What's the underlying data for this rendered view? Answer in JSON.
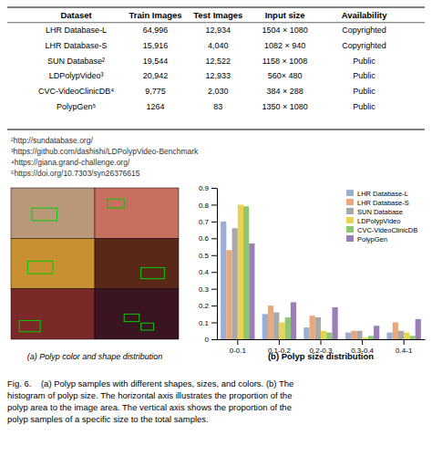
{
  "chart_data": [
    {
      "type": "table",
      "columns": [
        "Dataset",
        "Train Images",
        "Test Images",
        "Input size",
        "Availability"
      ],
      "rows": [
        [
          "LHR Database-L",
          "64,996",
          "12,934",
          "1504 × 1080",
          "Copyrighted"
        ],
        [
          "LHR Database-S",
          "15,916",
          "4,040",
          "1082 × 940",
          "Copyrighted"
        ],
        [
          "SUN Database²",
          "19,544",
          "12,522",
          "1158 × 1008",
          "Public"
        ],
        [
          "LDPolypVideo³",
          "20,942",
          "12,933",
          "560× 480",
          "Public"
        ],
        [
          "CVC-VideoClinicDB⁴",
          "9,775",
          "2,030",
          "384 × 288",
          "Public"
        ],
        [
          "PolypGen⁵",
          "1264",
          "83",
          "1350 × 1080",
          "Public"
        ]
      ],
      "annotations": [
        "²http://sundatabase.org/",
        "³https://github.com/dashishi/LDPolypVideo-Benchmark",
        "⁴https://giana.grand-challenge.org/",
        "⁵https://doi.org/10.7303/syn26376615"
      ]
    },
    {
      "type": "image_grid",
      "colors": [
        [
          "#b89878",
          "#c87060"
        ],
        [
          "#c89030",
          "#5a2818"
        ],
        [
          "#7a2828",
          "#3a1420"
        ]
      ],
      "xlabel": "(a) Polyp color and shape distribution"
    },
    {
      "type": "bar",
      "xlabel": "(b) Polyp size distribution",
      "categories": [
        "0-0.1",
        "0.1-0.2",
        "0.2-0.3",
        "0.3-0.4",
        "0.4-1"
      ],
      "series": [
        {
          "name": "LHR Database-L",
          "color": "#9BAFD4",
          "values": [
            0.7,
            0.15,
            0.07,
            0.04,
            0.04
          ]
        },
        {
          "name": "LHR Database-S",
          "color": "#E8A87C",
          "values": [
            0.53,
            0.2,
            0.14,
            0.05,
            0.1
          ]
        },
        {
          "name": "SUN Database",
          "color": "#A8A8A8",
          "values": [
            0.66,
            0.16,
            0.13,
            0.05,
            0.05
          ]
        },
        {
          "name": "LDPolypVideo",
          "color": "#E8D44D",
          "values": [
            0.8,
            0.1,
            0.05,
            0.01,
            0.04
          ]
        },
        {
          "name": "CVC-VideoClinicDB",
          "color": "#8DC86E",
          "values": [
            0.79,
            0.13,
            0.04,
            0.02,
            0.02
          ]
        },
        {
          "name": "PolypGen",
          "color": "#9B7DB8",
          "values": [
            0.57,
            0.22,
            0.19,
            0.08,
            0.12
          ]
        }
      ],
      "ylim": [
        0,
        0.9
      ],
      "yticks": [
        0,
        0.1,
        0.2,
        0.3,
        0.4,
        0.5,
        0.6,
        0.7,
        0.8,
        0.9
      ],
      "legend": "upper right"
    },
    {
      "type": "text",
      "annotations": [
        "Fig. 6.    (a) Polyp samples with different shapes, sizes, and colors. (b) The",
        "histogram of polyp size. The horizontal axis illustrates the proportion of the",
        "polyp area to the image area. The vertical axis shows the proportion of the",
        "polyp samples of a specific size to the total samples."
      ]
    }
  ]
}
